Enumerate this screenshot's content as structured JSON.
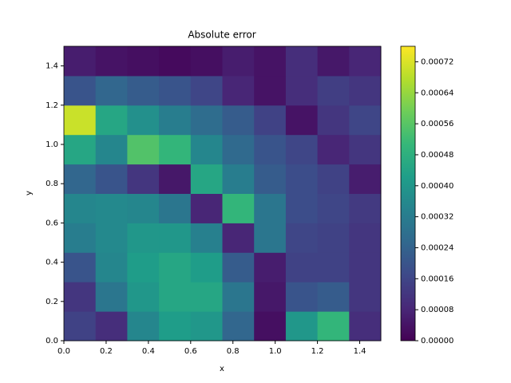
{
  "chart_data": {
    "type": "heatmap",
    "title": "Absolute error",
    "xlabel": "x",
    "ylabel": "y",
    "colormap": "viridis",
    "x": [
      0.075,
      0.225,
      0.375,
      0.525,
      0.675,
      0.825,
      0.975,
      1.125,
      1.275,
      1.425
    ],
    "y": [
      0.075,
      0.225,
      0.375,
      0.525,
      0.675,
      0.825,
      0.975,
      1.125,
      1.275,
      1.425
    ],
    "z": [
      [
        0.00015,
        0.0001,
        0.00035,
        0.00042,
        0.0004,
        0.00025,
        3e-05,
        0.0004,
        0.0005,
        0.0001
      ],
      [
        0.00012,
        0.0003,
        0.0004,
        0.00045,
        0.00045,
        0.0003,
        5e-05,
        0.0002,
        0.00022,
        0.00012
      ],
      [
        0.0002,
        0.00035,
        0.00042,
        0.00045,
        0.00042,
        0.00022,
        6e-05,
        0.00015,
        0.00015,
        0.00012
      ],
      [
        0.00032,
        0.00036,
        0.0004,
        0.0004,
        0.00033,
        8e-05,
        0.0003,
        0.00016,
        0.00015,
        0.00012
      ],
      [
        0.00035,
        0.00036,
        0.00035,
        0.0003,
        8e-05,
        0.0005,
        0.0003,
        0.00018,
        0.00016,
        0.00013
      ],
      [
        0.00025,
        0.0002,
        0.00012,
        5e-05,
        0.00045,
        0.00032,
        0.00022,
        0.00018,
        0.00015,
        6e-05
      ],
      [
        0.00045,
        0.00035,
        0.00055,
        0.0005,
        0.00035,
        0.00026,
        0.0002,
        0.00016,
        8e-05,
        0.00012
      ],
      [
        0.0007,
        0.00045,
        0.00038,
        0.00032,
        0.00027,
        0.00022,
        0.00015,
        4e-05,
        0.00012,
        0.00016
      ],
      [
        0.0002,
        0.00025,
        0.00022,
        0.0002,
        0.00016,
        8e-05,
        4e-05,
        0.0001,
        0.00014,
        0.00012
      ],
      [
        6e-05,
        4e-05,
        3e-05,
        2e-05,
        3e-05,
        6e-05,
        4e-05,
        0.0001,
        5e-05,
        8e-05
      ]
    ],
    "xlim": [
      0,
      1.5
    ],
    "ylim": [
      0,
      1.5
    ],
    "xticks": [
      {
        "value": 0,
        "label": "0.0"
      },
      {
        "value": 0.2,
        "label": "0.2"
      },
      {
        "value": 0.4,
        "label": "0.4"
      },
      {
        "value": 0.6,
        "label": "0.6"
      },
      {
        "value": 0.8,
        "label": "0.8"
      },
      {
        "value": 1,
        "label": "1.0"
      },
      {
        "value": 1.2,
        "label": "1.2"
      },
      {
        "value": 1.4,
        "label": "1.4"
      }
    ],
    "yticks": [
      {
        "value": 0,
        "label": "0.0"
      },
      {
        "value": 0.2,
        "label": "0.2"
      },
      {
        "value": 0.4,
        "label": "0.4"
      },
      {
        "value": 0.6,
        "label": "0.6"
      },
      {
        "value": 0.8,
        "label": "0.8"
      },
      {
        "value": 1,
        "label": "1.0"
      },
      {
        "value": 1.2,
        "label": "1.2"
      },
      {
        "value": 1.4,
        "label": "1.4"
      }
    ],
    "clim": [
      0,
      0.00076
    ],
    "cticks": [
      {
        "value": 0,
        "label": "0.00000"
      },
      {
        "value": 8e-05,
        "label": "0.00008"
      },
      {
        "value": 0.00016,
        "label": "0.00016"
      },
      {
        "value": 0.00024,
        "label": "0.00024"
      },
      {
        "value": 0.00032,
        "label": "0.00032"
      },
      {
        "value": 0.0004,
        "label": "0.00040"
      },
      {
        "value": 0.00048,
        "label": "0.00048"
      },
      {
        "value": 0.00056,
        "label": "0.00056"
      },
      {
        "value": 0.00064,
        "label": "0.00064"
      },
      {
        "value": 0.00072,
        "label": "0.00072"
      }
    ]
  }
}
